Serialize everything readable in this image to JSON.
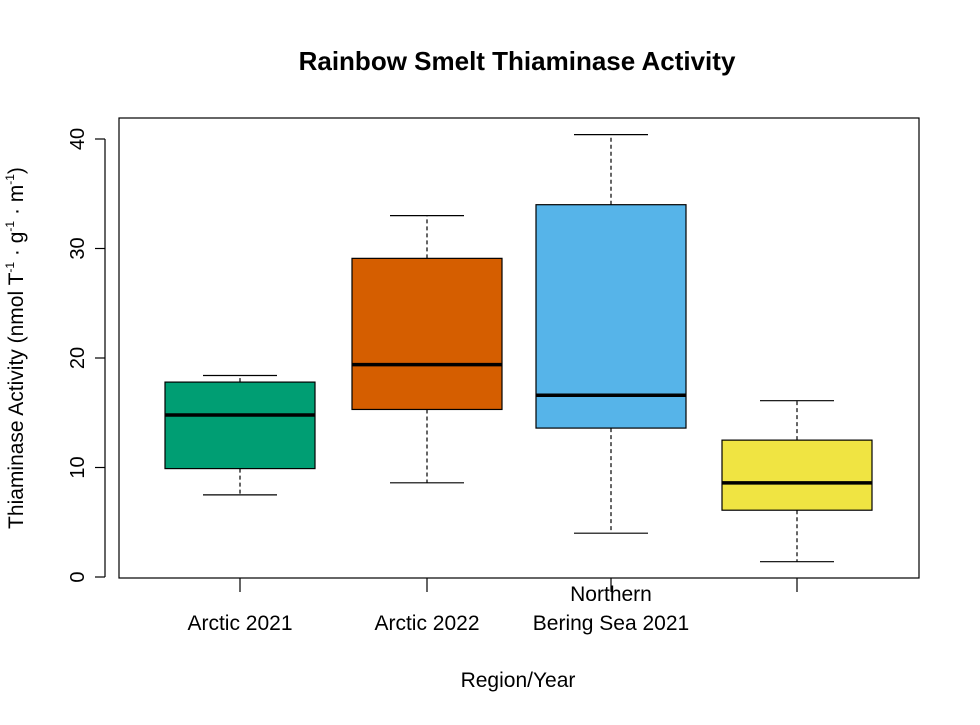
{
  "chart_data": {
    "type": "boxplot",
    "title": "Rainbow Smelt Thiaminase Activity",
    "xlabel": "Region/Year",
    "ylabel": {
      "main": "Thiaminase Activity (nmol T",
      "p1": " · g",
      "p2": " · m",
      "p3": ")",
      "sup": "-1"
    },
    "ylim": [
      0,
      42
    ],
    "yticks": [
      0,
      10,
      20,
      30,
      40
    ],
    "grid": false,
    "categories": [
      {
        "lines": [
          "Arctic 2021"
        ],
        "color": "#009E73",
        "whisker_low": 7.5,
        "q1": 9.9,
        "median": 14.8,
        "q3": 17.8,
        "whisker_high": 18.4
      },
      {
        "lines": [
          "Arctic 2022"
        ],
        "color": "#D55E00",
        "whisker_low": 8.6,
        "q1": 15.3,
        "median": 19.4,
        "q3": 29.1,
        "whisker_high": 33.0
      },
      {
        "lines": [
          "Northern",
          "Bering Sea 2021"
        ],
        "color": "#56B4E9",
        "whisker_low": 4.0,
        "q1": 13.6,
        "median": 16.6,
        "q3": 34.0,
        "whisker_high": 40.4
      },
      {
        "lines": [],
        "color": "#F0E442",
        "whisker_low": 1.4,
        "q1": 6.1,
        "median": 8.6,
        "q3": 12.5,
        "whisker_high": 16.1
      }
    ]
  }
}
